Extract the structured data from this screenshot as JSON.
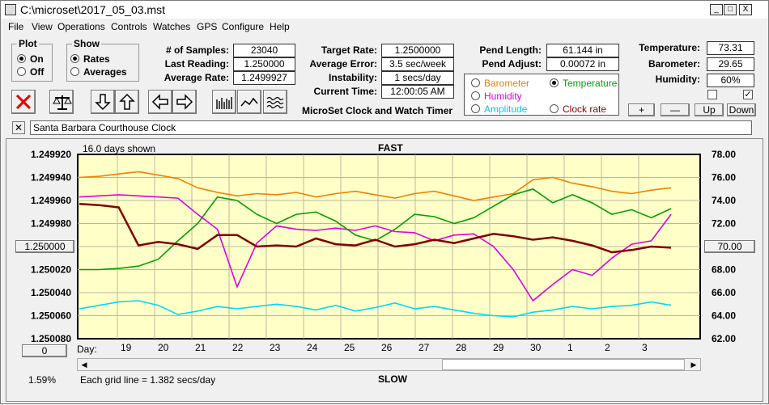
{
  "window": {
    "title": "C:\\microset\\2017_05_03.mst",
    "min": "_",
    "max": "□",
    "close": "X"
  },
  "menu": [
    "File",
    "View",
    "Operations",
    "Controls",
    "Watches",
    "GPS",
    "Configure",
    "Help"
  ],
  "plot_group": {
    "label": "Plot",
    "options": [
      "On",
      "Off"
    ],
    "selected": "On"
  },
  "show_group": {
    "label": "Show",
    "options": [
      "Rates",
      "Averages"
    ],
    "selected": "Rates"
  },
  "stats": {
    "samples_label": "# of Samples:",
    "samples": "23040",
    "last_label": "Last Reading:",
    "last": "1.250000",
    "avg_label": "Average Rate:",
    "avg": "1.2499927",
    "target_label": "Target Rate:",
    "target": "1.2500000",
    "error_label": "Average Error:",
    "error": "3.5 sec/week",
    "instab_label": "Instability:",
    "instab": "1 secs/day",
    "time_label": "Current Time:",
    "time": "12:00:05 AM",
    "pend_len_label": "Pend Length:",
    "pend_len": "61.144 in",
    "pend_adj_label": "Pend Adjust:",
    "pend_adj": "0.00072 in",
    "temp_label": "Temperature:",
    "temp": "73.31",
    "baro_label": "Barometer:",
    "baro": "29.65",
    "humid_label": "Humidity:",
    "humid": "60%"
  },
  "app_caption": "MicroSet Clock and Watch Timer",
  "legend": {
    "items": [
      {
        "label": "Barometer",
        "color": "#f08000",
        "selected": false
      },
      {
        "label": "Temperature",
        "color": "#00a000",
        "selected": true
      },
      {
        "label": "Humidity",
        "color": "#e000e0",
        "selected": false
      },
      {
        "label": "Clock rate",
        "color": "#800000",
        "selected": false
      },
      {
        "label": "Amplitude",
        "color": "#00d8ff",
        "selected": false
      }
    ]
  },
  "buttons": {
    "plus": "+",
    "minus": "—",
    "up": "Up",
    "down": "Down",
    "zero": "0",
    "x": "✕"
  },
  "checkboxes": {
    "left": "",
    "right": "✓"
  },
  "clock_name": "Santa Barbara Courthouse Clock",
  "chart_labels": {
    "days_shown": "16.0 days shown",
    "fast": "FAST",
    "slow": "SLOW",
    "grid_note": "Each grid line = 1.382 secs/day",
    "day_label": "Day:",
    "percent": "1.59%",
    "left_button": "1.250000",
    "right_button": "70.00"
  },
  "icons": [
    "red-x-icon",
    "balance-scale-icon",
    "arrow-down-icon",
    "arrow-up-icon",
    "arrow-left-icon",
    "arrow-right-icon",
    "bars-icon",
    "wave-icon",
    "zigzag-icon"
  ],
  "chart_data": {
    "type": "line",
    "left_axis": {
      "ticks": [
        "1.249920",
        "1.249940",
        "1.249960",
        "1.249980",
        "1.250000",
        "1.250020",
        "1.250040",
        "1.250060",
        "1.250080"
      ]
    },
    "right_axis": {
      "ticks": [
        "78.00",
        "76.00",
        "74.00",
        "72.00",
        "70.00",
        "68.00",
        "66.00",
        "64.00",
        "62.00"
      ]
    },
    "x_ticks": [
      "19",
      "20",
      "21",
      "22",
      "23",
      "24",
      "25",
      "26",
      "27",
      "28",
      "29",
      "30",
      "1",
      "2",
      "3"
    ],
    "y_range_right": [
      62,
      78
    ],
    "grid": true,
    "background": "#ffffc8",
    "series": [
      {
        "name": "Barometer",
        "color": "#f08000",
        "values": [
          76.0,
          76.1,
          76.3,
          76.5,
          76.2,
          75.9,
          75.1,
          74.7,
          74.4,
          74.6,
          74.5,
          74.7,
          74.3,
          74.6,
          74.8,
          74.5,
          74.2,
          74.6,
          74.8,
          74.4,
          74.0,
          74.3,
          74.6,
          75.8,
          76.0,
          75.5,
          75.2,
          74.8,
          74.6,
          74.9,
          75.1
        ]
      },
      {
        "name": "Temperature",
        "color": "#00a000",
        "values": [
          68.0,
          68.0,
          68.1,
          68.3,
          68.9,
          70.5,
          72.0,
          74.3,
          74.0,
          72.8,
          72.0,
          72.8,
          73.0,
          72.2,
          71.0,
          70.5,
          71.5,
          72.8,
          72.6,
          72.0,
          72.5,
          73.5,
          74.5,
          75.0,
          73.8,
          74.5,
          73.8,
          72.8,
          73.2,
          72.5,
          73.3
        ]
      },
      {
        "name": "Humidity",
        "color": "#e000e0",
        "values": [
          74.3,
          74.4,
          74.5,
          74.4,
          74.3,
          74.2,
          72.8,
          71.5,
          66.5,
          70.3,
          71.8,
          71.5,
          71.4,
          71.6,
          71.4,
          71.8,
          71.3,
          71.2,
          70.5,
          71.0,
          71.1,
          70.0,
          68.0,
          65.3,
          66.7,
          68.0,
          67.5,
          69.0,
          70.2,
          70.5,
          72.8
        ]
      },
      {
        "name": "Clock rate",
        "color": "#800000",
        "values": [
          1.249963,
          1.249964,
          1.249966,
          1.249999,
          1.249996,
          1.249998,
          1.250002,
          1.24999,
          1.24999,
          1.25,
          1.249999,
          1.25,
          1.249993,
          1.249998,
          1.249999,
          1.249994,
          1.25,
          1.249998,
          1.249994,
          1.249997,
          1.249993,
          1.249989,
          1.249991,
          1.249994,
          1.249992,
          1.249995,
          1.249999,
          1.250005,
          1.250003,
          1.25,
          1.250001
        ]
      },
      {
        "name": "Amplitude",
        "color": "#00d8ff",
        "values": [
          64.6,
          64.9,
          65.2,
          65.3,
          64.9,
          64.1,
          64.4,
          64.8,
          64.6,
          64.8,
          65.0,
          64.8,
          64.5,
          64.9,
          64.4,
          64.7,
          65.1,
          64.6,
          64.8,
          64.5,
          64.2,
          64.0,
          63.9,
          64.3,
          64.5,
          64.8,
          64.6,
          64.8,
          64.9,
          65.2,
          64.9
        ]
      }
    ]
  }
}
